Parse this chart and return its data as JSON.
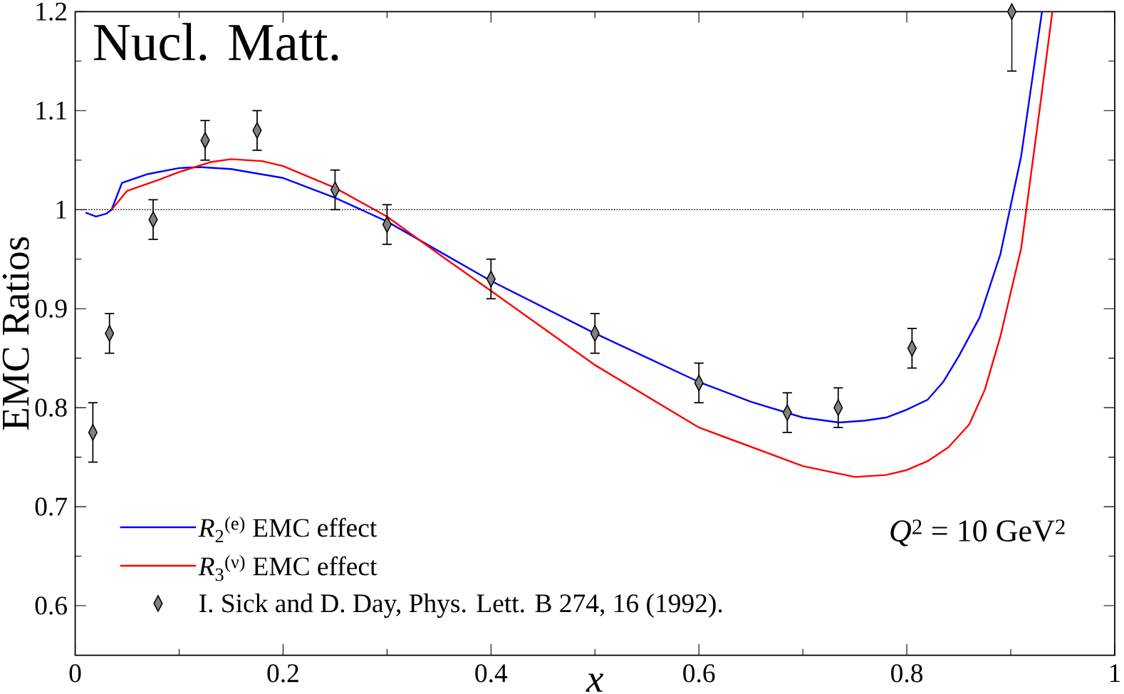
{
  "chart_data": {
    "type": "line",
    "xlabel": "*x*",
    "ylabel": "EMC Ratios",
    "xlim": [
      0,
      1
    ],
    "ylim": [
      0.55,
      1.2
    ],
    "xticks": [
      0,
      0.2,
      0.4,
      0.6,
      0.8,
      1
    ],
    "yticks": [
      0.6,
      0.7,
      0.8,
      0.9,
      1,
      1.1,
      1.2
    ],
    "legend": "bottom left",
    "ref_lines": [
      {
        "axis": "y",
        "value": 1,
        "line_style": "dotted",
        "color": "#000000"
      }
    ],
    "annotations": [
      "Nucl. Matt.",
      "*Q*$^{2}$ = 10 GeV$^{2}$"
    ],
    "series": [
      {
        "name": "*R*$_{2}$$^{(e)}$ EMC effect",
        "color": "#0000ff",
        "x": [
          0.01,
          0.02,
          0.03,
          0.035,
          0.045,
          0.07,
          0.1,
          0.12,
          0.15,
          0.2,
          0.25,
          0.3,
          0.35,
          0.4,
          0.5,
          0.6,
          0.65,
          0.7,
          0.735,
          0.76,
          0.78,
          0.8,
          0.82,
          0.835,
          0.85,
          0.87,
          0.89,
          0.91,
          0.93
        ],
        "values": [
          0.997,
          0.993,
          0.996,
          1.0,
          1.027,
          1.036,
          1.042,
          1.043,
          1.041,
          1.032,
          1.012,
          0.988,
          0.958,
          0.928,
          0.875,
          0.826,
          0.806,
          0.79,
          0.785,
          0.787,
          0.79,
          0.798,
          0.808,
          0.826,
          0.852,
          0.891,
          0.955,
          1.054,
          1.2
        ]
      },
      {
        "name": "*R*$_{3}$$^{(ν)}$ EMC effect",
        "color": "#ff0000",
        "x": [
          0.035,
          0.05,
          0.08,
          0.1,
          0.13,
          0.15,
          0.18,
          0.2,
          0.25,
          0.3,
          0.35,
          0.4,
          0.5,
          0.6,
          0.7,
          0.75,
          0.78,
          0.8,
          0.82,
          0.84,
          0.86,
          0.875,
          0.89,
          0.91,
          0.93,
          0.94
        ],
        "values": [
          1.0,
          1.019,
          1.03,
          1.038,
          1.048,
          1.051,
          1.049,
          1.044,
          1.022,
          0.993,
          0.955,
          0.918,
          0.843,
          0.78,
          0.741,
          0.73,
          0.732,
          0.737,
          0.746,
          0.76,
          0.783,
          0.818,
          0.872,
          0.961,
          1.119,
          1.2
        ]
      },
      {
        "name": "I. Sick and D. Day, Phys. Lett. B 274, 16 (1992).",
        "type": "scatter",
        "marker": "diamond",
        "color": "#808080",
        "x": [
          0.017,
          0.033,
          0.075,
          0.125,
          0.175,
          0.25,
          0.3,
          0.4,
          0.5,
          0.6,
          0.685,
          0.734,
          0.805,
          0.901
        ],
        "values": [
          0.775,
          0.875,
          0.99,
          1.07,
          1.08,
          1.02,
          0.985,
          0.93,
          0.875,
          0.825,
          0.795,
          0.8,
          0.86,
          1.2
        ],
        "errors": [
          0.03,
          0.02,
          0.02,
          0.02,
          0.02,
          0.02,
          0.02,
          0.02,
          0.02,
          0.02,
          0.02,
          0.02,
          0.02,
          [
            1.14,
            1.2
          ]
        ]
      }
    ]
  }
}
